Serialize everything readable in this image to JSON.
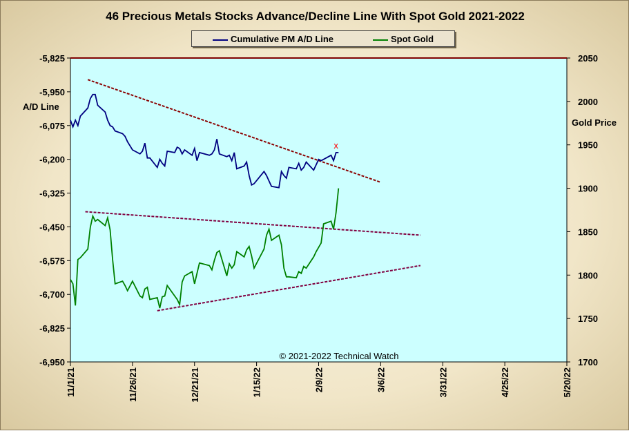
{
  "title": "46 Precious Metals Stocks Advance/Decline Line With Spot Gold 2021-2022",
  "copyright": "© 2021-2022 Technical Watch",
  "colors": {
    "plot_bg": "#ccffff",
    "ad_line": "#000080",
    "gold_line": "#008000",
    "trend_ad": "#8b0000",
    "trend_gold": "#800040",
    "frame_top": "#800000",
    "marker": "#ff0000"
  },
  "legend": [
    {
      "label": "Cumulative PM A/D Line",
      "color": "#000080"
    },
    {
      "label": "Spot Gold",
      "color": "#008000"
    }
  ],
  "chart_data": {
    "type": "line",
    "x_start": "2021-11-01",
    "y_left": {
      "label": "A/D Line",
      "min": -6950,
      "max": -5825,
      "ticks": [
        -5825,
        -5950,
        -6075,
        -6200,
        -6325,
        -6450,
        -6575,
        -6700,
        -6825,
        -6950
      ],
      "tick_labels": [
        "-5,825",
        "-5,950",
        "-6,075",
        "-6,200",
        "-6,325",
        "-6,450",
        "-6,575",
        "-6,700",
        "-6,825",
        "-6,950"
      ]
    },
    "y_right": {
      "label": "Gold Price",
      "min": 1700,
      "max": 2050,
      "ticks": [
        2050,
        2000,
        1950,
        1900,
        1850,
        1800,
        1750,
        1700
      ],
      "tick_labels": [
        "2050",
        "2000",
        "1950",
        "1900",
        "1850",
        "1800",
        "1750",
        "1700"
      ]
    },
    "x_axis": {
      "min": "2021-11-01",
      "max": "2022-05-20",
      "ticks": [
        "2021-11-01",
        "2021-11-26",
        "2021-12-21",
        "2022-01-15",
        "2022-02-09",
        "2022-03-06",
        "2022-03-31",
        "2022-04-25",
        "2022-05-20"
      ],
      "tick_labels": [
        "11/1/21",
        "11/26/21",
        "12/21/21",
        "1/15/22",
        "2/9/22",
        "3/6/22",
        "3/31/22",
        "4/25/22",
        "5/20/22"
      ]
    },
    "grid": false,
    "series": [
      {
        "name": "Cumulative PM A/D Line",
        "axis": "left",
        "x": [
          "2021-11-01",
          "2021-11-02",
          "2021-11-03",
          "2021-11-04",
          "2021-11-05",
          "2021-11-08",
          "2021-11-09",
          "2021-11-10",
          "2021-11-11",
          "2021-11-12",
          "2021-11-15",
          "2021-11-16",
          "2021-11-17",
          "2021-11-18",
          "2021-11-19",
          "2021-11-22",
          "2021-11-23",
          "2021-11-24",
          "2021-11-26",
          "2021-11-29",
          "2021-11-30",
          "2021-12-01",
          "2021-12-02",
          "2021-12-03",
          "2021-12-06",
          "2021-12-07",
          "2021-12-08",
          "2021-12-09",
          "2021-12-10",
          "2021-12-13",
          "2021-12-14",
          "2021-12-15",
          "2021-12-16",
          "2021-12-17",
          "2021-12-20",
          "2021-12-21",
          "2021-12-22",
          "2021-12-23",
          "2021-12-27",
          "2021-12-28",
          "2021-12-29",
          "2021-12-30",
          "2021-12-31",
          "2022-01-03",
          "2022-01-04",
          "2022-01-05",
          "2022-01-06",
          "2022-01-07",
          "2022-01-10",
          "2022-01-11",
          "2022-01-12",
          "2022-01-13",
          "2022-01-14",
          "2022-01-18",
          "2022-01-19",
          "2022-01-20",
          "2022-01-21",
          "2022-01-24",
          "2022-01-25",
          "2022-01-26",
          "2022-01-27",
          "2022-01-28",
          "2022-01-31",
          "2022-02-01",
          "2022-02-02",
          "2022-02-03",
          "2022-02-04",
          "2022-02-07",
          "2022-02-08",
          "2022-02-09",
          "2022-02-10",
          "2022-02-11",
          "2022-02-14",
          "2022-02-15",
          "2022-02-16",
          "2022-02-17"
        ],
        "values": [
          -6055,
          -6080,
          -6055,
          -6075,
          -6040,
          -6010,
          -5975,
          -5960,
          -5960,
          -6000,
          -6025,
          -6055,
          -6075,
          -6080,
          -6095,
          -6105,
          -6115,
          -6135,
          -6165,
          -6180,
          -6170,
          -6140,
          -6195,
          -6195,
          -6230,
          -6200,
          -6215,
          -6225,
          -6170,
          -6175,
          -6155,
          -6160,
          -6180,
          -6165,
          -6185,
          -6160,
          -6205,
          -6175,
          -6185,
          -6180,
          -6165,
          -6125,
          -6180,
          -6190,
          -6185,
          -6205,
          -6175,
          -6235,
          -6225,
          -6210,
          -6260,
          -6295,
          -6290,
          -6245,
          -6260,
          -6280,
          -6300,
          -6305,
          -6245,
          -6260,
          -6270,
          -6230,
          -6235,
          -6215,
          -6240,
          -6230,
          -6210,
          -6240,
          -6220,
          -6200,
          -6205,
          -6200,
          -6185,
          -6205,
          -6175,
          -6175
        ]
      },
      {
        "name": "Spot Gold",
        "axis": "right",
        "x": [
          "2021-11-01",
          "2021-11-02",
          "2021-11-03",
          "2021-11-04",
          "2021-11-05",
          "2021-11-08",
          "2021-11-09",
          "2021-11-10",
          "2021-11-11",
          "2021-11-12",
          "2021-11-15",
          "2021-11-16",
          "2021-11-17",
          "2021-11-18",
          "2021-11-19",
          "2021-11-22",
          "2021-11-23",
          "2021-11-24",
          "2021-11-26",
          "2021-11-29",
          "2021-11-30",
          "2021-12-01",
          "2021-12-02",
          "2021-12-03",
          "2021-12-06",
          "2021-12-07",
          "2021-12-08",
          "2021-12-09",
          "2021-12-10",
          "2021-12-13",
          "2021-12-14",
          "2021-12-15",
          "2021-12-16",
          "2021-12-17",
          "2021-12-20",
          "2021-12-21",
          "2021-12-22",
          "2021-12-23",
          "2021-12-27",
          "2021-12-28",
          "2021-12-29",
          "2021-12-30",
          "2021-12-31",
          "2022-01-03",
          "2022-01-04",
          "2022-01-05",
          "2022-01-06",
          "2022-01-07",
          "2022-01-10",
          "2022-01-11",
          "2022-01-12",
          "2022-01-13",
          "2022-01-14",
          "2022-01-18",
          "2022-01-19",
          "2022-01-20",
          "2022-01-21",
          "2022-01-24",
          "2022-01-25",
          "2022-01-26",
          "2022-01-27",
          "2022-01-28",
          "2022-01-31",
          "2022-02-01",
          "2022-02-02",
          "2022-02-03",
          "2022-02-04",
          "2022-02-07",
          "2022-02-08",
          "2022-02-09",
          "2022-02-10",
          "2022-02-11",
          "2022-02-14",
          "2022-02-15",
          "2022-02-16",
          "2022-02-17"
        ],
        "values": [
          1795,
          1790,
          1765,
          1818,
          1820,
          1830,
          1855,
          1868,
          1862,
          1864,
          1857,
          1866,
          1852,
          1818,
          1790,
          1793,
          1788,
          1782,
          1793,
          1776,
          1774,
          1784,
          1786,
          1772,
          1774,
          1762,
          1775,
          1776,
          1788,
          1776,
          1772,
          1766,
          1792,
          1799,
          1804,
          1790,
          1802,
          1814,
          1811,
          1806,
          1817,
          1826,
          1828,
          1799,
          1813,
          1808,
          1812,
          1827,
          1821,
          1829,
          1833,
          1822,
          1808,
          1830,
          1846,
          1853,
          1840,
          1846,
          1835,
          1808,
          1798,
          1798,
          1797,
          1804,
          1802,
          1810,
          1808,
          1821,
          1827,
          1832,
          1837,
          1859,
          1862,
          1853,
          1872,
          1900
        ]
      }
    ],
    "trendlines": [
      {
        "axis": "left",
        "from": [
          "2021-11-08",
          -5905
        ],
        "to": [
          "2022-03-06",
          -6285
        ]
      },
      {
        "axis": "right",
        "from": [
          "2021-11-07",
          1873
        ],
        "to": [
          "2022-03-22",
          1846
        ]
      },
      {
        "axis": "right",
        "from": [
          "2021-12-06",
          1759
        ],
        "to": [
          "2022-03-22",
          1811
        ]
      }
    ],
    "markers": [
      {
        "axis": "left",
        "x": "2022-02-16",
        "y": -6150,
        "symbol": "x"
      }
    ]
  }
}
